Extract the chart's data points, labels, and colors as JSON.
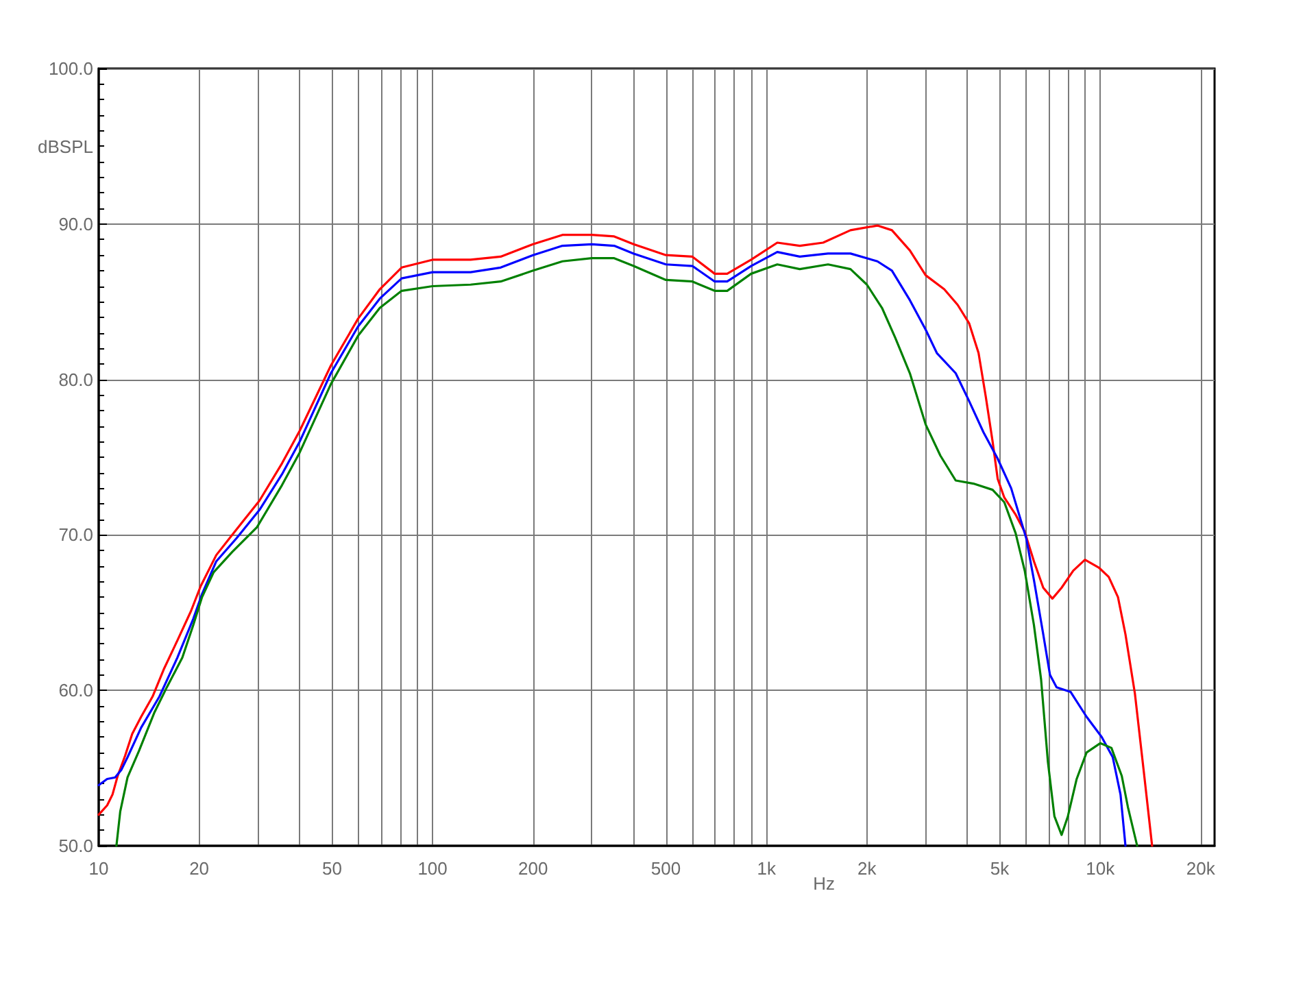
{
  "chart_data": {
    "type": "line",
    "xlabel": "Hz",
    "ylabel": "dBSPL",
    "log": "x",
    "grid": true,
    "marker": "none",
    "line_style": "solid",
    "xlim": [
      10,
      22000
    ],
    "ylim": [
      50,
      100
    ],
    "xticks": [
      10,
      20,
      {
        "value": 30,
        "label": null
      },
      {
        "value": 40,
        "label": null
      },
      50,
      {
        "value": 60,
        "label": null
      },
      {
        "value": 70,
        "label": null
      },
      {
        "value": 80,
        "label": null
      },
      {
        "value": 90,
        "label": null
      },
      100,
      200,
      {
        "value": 300,
        "label": null
      },
      {
        "value": 400,
        "label": null
      },
      500,
      {
        "value": 600,
        "label": null
      },
      {
        "value": 700,
        "label": null
      },
      {
        "value": 800,
        "label": null
      },
      {
        "value": 900,
        "label": null
      },
      {
        "value": 1000,
        "label": "1k"
      },
      {
        "value": 2000,
        "label": "2k"
      },
      {
        "value": 3000,
        "label": null
      },
      {
        "value": 4000,
        "label": null
      },
      {
        "value": 5000,
        "label": "5k"
      },
      {
        "value": 6000,
        "label": null
      },
      {
        "value": 7000,
        "label": null
      },
      {
        "value": 8000,
        "label": null
      },
      {
        "value": 9000,
        "label": null
      },
      {
        "value": 10000,
        "label": "10k"
      },
      {
        "value": 20000,
        "label": "20k"
      }
    ],
    "yticks": [
      {
        "value": 50,
        "label": "50.0"
      },
      {
        "value": 60,
        "label": "60.0"
      },
      {
        "value": 70,
        "label": "70.0"
      },
      {
        "value": 80,
        "label": "80.0"
      },
      {
        "value": 90,
        "label": "90.0"
      },
      {
        "value": 100,
        "label": "100.0"
      }
    ],
    "series": [
      {
        "color": "#ff0000",
        "x": [
          10,
          10.6,
          11.0,
          11.4,
          12.0,
          12.6,
          13.4,
          14.5,
          15.7,
          17.2,
          18.9,
          20.2,
          22.5,
          25.1,
          30.3,
          35.4,
          40,
          49.6,
          59.8,
          69.5,
          80.8,
          100,
          130,
          160,
          200,
          245,
          300,
          350,
          400,
          500,
          600,
          700,
          763,
          900,
          1078,
          1259,
          1479,
          1786,
          2150,
          2377,
          2690,
          3000,
          3410,
          3740,
          4050,
          4320,
          4540,
          4760,
          4930,
          5160,
          5580,
          5940,
          6330,
          6750,
          7190,
          7660,
          8300,
          9000,
          9900,
          10600,
          11300,
          11900,
          12700,
          13500,
          14300
        ],
        "values": [
          52.0,
          52.6,
          53.3,
          54.5,
          55.8,
          57.2,
          58.3,
          59.6,
          61.4,
          63.2,
          65.1,
          66.7,
          68.7,
          70.0,
          72.2,
          74.6,
          76.7,
          80.9,
          83.9,
          85.8,
          87.2,
          87.7,
          87.7,
          87.9,
          88.7,
          89.3,
          89.3,
          89.2,
          88.7,
          88.0,
          87.9,
          86.8,
          86.8,
          87.7,
          88.8,
          88.6,
          88.8,
          89.6,
          89.9,
          89.6,
          88.3,
          86.7,
          85.8,
          84.8,
          83.6,
          81.7,
          78.9,
          76.0,
          73.6,
          72.4,
          71.3,
          70.2,
          68.3,
          66.6,
          65.9,
          66.6,
          67.7,
          68.4,
          67.9,
          67.3,
          66.0,
          63.6,
          59.8,
          54.8,
          50.0
        ]
      },
      {
        "color": "#0000ff",
        "x": [
          10,
          10.6,
          11.2,
          11.7,
          12.2,
          13.4,
          15.2,
          17.2,
          19.2,
          20.4,
          22.5,
          25.9,
          30.3,
          35.4,
          40,
          49.6,
          59.8,
          69.5,
          80.8,
          100,
          130,
          160,
          200,
          245,
          300,
          350,
          400,
          500,
          600,
          700,
          763,
          900,
          1078,
          1259,
          1530,
          1786,
          2150,
          2377,
          2690,
          3000,
          3240,
          3690,
          4050,
          4470,
          4930,
          5410,
          6000,
          6330,
          6750,
          7070,
          7400,
          8150,
          9100,
          10100,
          10900,
          11500,
          11900
        ],
        "values": [
          53.9,
          54.3,
          54.4,
          54.9,
          55.7,
          57.6,
          59.6,
          62.1,
          64.6,
          66.2,
          68.3,
          69.8,
          71.6,
          73.9,
          76.0,
          80.4,
          83.4,
          85.2,
          86.5,
          86.9,
          86.9,
          87.2,
          88.0,
          88.6,
          88.7,
          88.6,
          88.1,
          87.4,
          87.3,
          86.3,
          86.3,
          87.3,
          88.2,
          87.9,
          88.1,
          88.1,
          87.6,
          87.0,
          85.1,
          83.2,
          81.7,
          80.4,
          78.6,
          76.6,
          74.9,
          73.0,
          69.8,
          67.1,
          63.6,
          61.0,
          60.2,
          59.9,
          58.3,
          57.0,
          55.7,
          53.3,
          50.0
        ]
      },
      {
        "color": "#008000",
        "x": [
          11.3,
          11.6,
          12.2,
          13.2,
          14.7,
          16.0,
          17.8,
          19.2,
          20.4,
          22.1,
          25.1,
          29.8,
          35.4,
          40,
          49.6,
          59.8,
          69.5,
          80.8,
          100,
          130,
          160,
          200,
          245,
          300,
          350,
          400,
          500,
          600,
          700,
          763,
          900,
          1078,
          1259,
          1530,
          1786,
          2000,
          2220,
          2430,
          2690,
          3000,
          3320,
          3690,
          4170,
          4760,
          5160,
          5580,
          5940,
          6330,
          6650,
          6970,
          7290,
          7660,
          8000,
          8500,
          9100,
          10000,
          10800,
          11600,
          12100,
          12900
        ],
        "values": [
          50.0,
          52.2,
          54.4,
          56.1,
          58.6,
          60.2,
          62.1,
          64.2,
          66.0,
          67.6,
          68.9,
          70.5,
          73.2,
          75.3,
          79.7,
          82.8,
          84.6,
          85.7,
          86.0,
          86.1,
          86.3,
          87.0,
          87.6,
          87.8,
          87.8,
          87.3,
          86.4,
          86.3,
          85.7,
          85.7,
          86.8,
          87.4,
          87.1,
          87.4,
          87.1,
          86.1,
          84.6,
          82.7,
          80.4,
          77.1,
          75.1,
          73.5,
          73.3,
          72.9,
          72.1,
          70.1,
          67.7,
          64.2,
          60.7,
          55.4,
          51.9,
          50.7,
          51.9,
          54.3,
          56.0,
          56.6,
          56.3,
          54.5,
          52.5,
          50.0
        ]
      }
    ]
  }
}
